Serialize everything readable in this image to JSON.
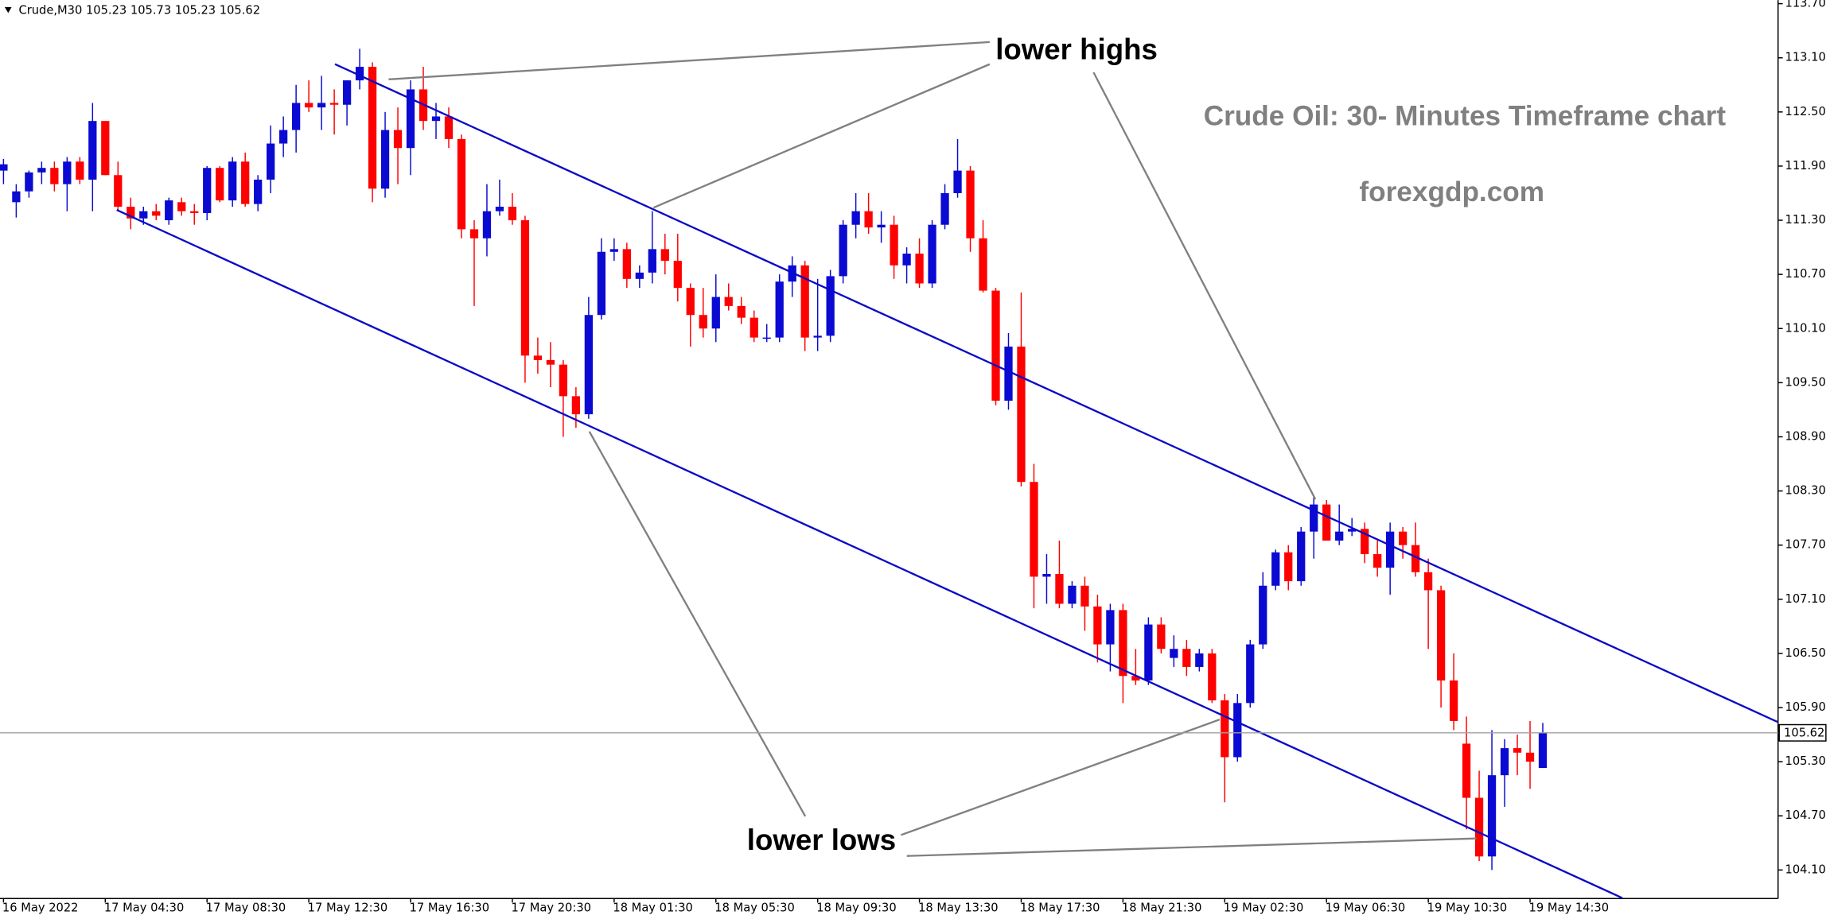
{
  "chart_data": {
    "type": "candlestick",
    "header": "Crude,M30  105.23 105.73 105.23 105.62",
    "annotations": [
      "lower highs",
      "lower lows"
    ],
    "title": "Crude Oil: 30- Minutes Timeframe chart",
    "subtitle": "forexgdp.com",
    "up_color": "#0a0ad2",
    "down_color": "#ff0000",
    "categories": [
      "16 May 2022",
      null,
      null,
      null,
      null,
      null,
      null,
      null,
      "17 May 04:30",
      null,
      null,
      null,
      null,
      null,
      null,
      null,
      "17 May 08:30",
      null,
      null,
      null,
      null,
      null,
      null,
      null,
      "17 May 12:30",
      null,
      null,
      null,
      null,
      null,
      null,
      null,
      "17 May 16:30",
      null,
      null,
      null,
      null,
      null,
      null,
      null,
      "17 May 20:30",
      null,
      null,
      null,
      null,
      null,
      null,
      null,
      "18 May 01:30",
      null,
      null,
      null,
      null,
      null,
      null,
      null,
      "18 May 05:30",
      null,
      null,
      null,
      null,
      null,
      null,
      null,
      "18 May 09:30",
      null,
      null,
      null,
      null,
      null,
      null,
      null,
      "18 May 13:30",
      null,
      null,
      null,
      null,
      null,
      null,
      null,
      "18 May 17:30",
      null,
      null,
      null,
      null,
      null,
      null,
      null,
      "18 May 21:30",
      null,
      null,
      null,
      null,
      null,
      null,
      null,
      "19 May 02:30",
      null,
      null,
      null,
      null,
      null,
      null,
      null,
      "19 May 06:30",
      null,
      null,
      null,
      null,
      null,
      null,
      null,
      "19 May 10:30",
      null,
      null,
      null,
      null,
      null,
      null,
      null,
      "19 May 14:30",
      null
    ],
    "open": [
      111.85,
      111.5,
      111.62,
      111.83,
      111.88,
      111.7,
      111.95,
      111.75,
      112.4,
      111.8,
      111.45,
      111.32,
      111.4,
      111.3,
      111.5,
      111.4,
      111.38,
      111.88,
      111.52,
      111.95,
      111.48,
      111.75,
      112.15,
      112.3,
      112.6,
      112.55,
      112.6,
      112.58,
      112.85,
      113.0,
      111.65,
      112.3,
      112.1,
      112.75,
      112.4,
      112.45,
      112.2,
      111.2,
      111.1,
      111.4,
      111.45,
      111.3,
      109.8,
      109.75,
      109.7,
      109.35,
      109.15,
      110.25,
      110.95,
      110.98,
      110.65,
      110.72,
      110.98,
      110.85,
      110.55,
      110.25,
      110.1,
      110.45,
      110.35,
      110.22,
      110.0,
      110.0,
      110.62,
      110.8,
      110.0,
      110.02,
      110.68,
      111.25,
      111.4,
      111.22,
      111.25,
      110.8,
      110.93,
      110.6,
      111.25,
      111.6,
      111.85,
      111.1,
      110.52,
      109.3,
      109.9,
      108.4,
      107.35,
      107.38,
      107.05,
      107.25,
      107.02,
      106.6,
      106.98,
      106.25,
      106.2,
      106.82,
      106.45,
      106.55,
      106.35,
      106.5,
      105.98,
      105.35,
      105.95,
      106.6,
      107.25,
      107.62,
      107.3,
      107.85,
      108.15,
      107.75,
      107.85,
      107.88,
      107.6,
      107.45,
      107.85,
      107.7,
      107.4,
      107.2,
      106.2,
      105.5,
      104.9,
      104.25,
      105.15,
      105.45,
      105.4,
      105.23
    ],
    "high": [
      111.98,
      111.7,
      111.85,
      111.95,
      111.95,
      112.0,
      112.0,
      112.6,
      112.4,
      111.95,
      111.55,
      111.45,
      111.48,
      111.55,
      111.55,
      111.48,
      111.9,
      111.9,
      112.0,
      112.05,
      111.8,
      112.35,
      112.45,
      112.8,
      112.85,
      112.9,
      112.75,
      112.85,
      113.2,
      113.05,
      112.5,
      112.55,
      112.85,
      113.0,
      112.6,
      112.55,
      112.25,
      111.3,
      111.7,
      111.75,
      111.6,
      111.35,
      110.0,
      109.95,
      109.75,
      109.45,
      110.45,
      111.1,
      111.1,
      111.05,
      110.8,
      111.4,
      111.15,
      111.15,
      110.6,
      110.55,
      110.7,
      110.6,
      110.45,
      110.3,
      110.15,
      110.7,
      110.9,
      110.85,
      110.65,
      110.75,
      111.3,
      111.6,
      111.6,
      111.4,
      111.35,
      111.0,
      111.1,
      111.3,
      111.7,
      112.2,
      111.9,
      111.3,
      110.55,
      110.05,
      110.5,
      108.6,
      107.6,
      107.75,
      107.3,
      107.35,
      107.15,
      107.05,
      107.05,
      106.55,
      106.9,
      106.9,
      106.7,
      106.65,
      106.55,
      106.55,
      106.05,
      106.05,
      106.65,
      107.4,
      107.65,
      107.7,
      107.9,
      108.25,
      108.2,
      108.15,
      108.0,
      107.95,
      107.75,
      107.95,
      107.9,
      107.95,
      107.55,
      107.25,
      106.5,
      105.8,
      105.2,
      105.65,
      105.55,
      105.6,
      105.75,
      105.73
    ],
    "low": [
      111.7,
      111.33,
      111.55,
      111.7,
      111.62,
      111.4,
      111.7,
      111.4,
      111.8,
      111.4,
      111.2,
      111.25,
      111.3,
      111.25,
      111.35,
      111.25,
      111.3,
      111.5,
      111.45,
      111.45,
      111.4,
      111.6,
      112.0,
      112.05,
      112.5,
      112.3,
      112.25,
      112.35,
      112.75,
      111.5,
      111.55,
      111.7,
      111.8,
      112.3,
      112.2,
      112.1,
      111.1,
      110.35,
      110.9,
      111.35,
      111.25,
      109.5,
      109.6,
      109.45,
      108.9,
      109.0,
      109.1,
      110.2,
      110.85,
      110.55,
      110.55,
      110.6,
      110.7,
      110.4,
      109.9,
      110.0,
      109.95,
      110.3,
      110.15,
      109.95,
      109.95,
      109.95,
      110.45,
      109.85,
      109.85,
      109.95,
      110.6,
      111.1,
      111.15,
      111.05,
      110.65,
      110.6,
      110.55,
      110.55,
      111.2,
      111.55,
      110.95,
      110.5,
      109.25,
      109.2,
      108.35,
      107.0,
      107.05,
      107.0,
      107.0,
      106.75,
      106.4,
      106.3,
      105.95,
      106.15,
      106.15,
      106.5,
      106.35,
      106.25,
      106.3,
      105.95,
      104.85,
      105.3,
      105.9,
      106.55,
      107.2,
      107.2,
      107.25,
      107.55,
      107.75,
      107.7,
      107.8,
      107.5,
      107.35,
      107.15,
      107.55,
      107.35,
      106.55,
      105.9,
      105.65,
      104.55,
      104.2,
      104.1,
      104.8,
      105.15,
      105.0,
      105.23
    ],
    "close": [
      111.92,
      111.62,
      111.83,
      111.88,
      111.7,
      111.95,
      111.75,
      112.4,
      111.8,
      111.45,
      111.32,
      111.4,
      111.35,
      111.52,
      111.4,
      111.38,
      111.88,
      111.52,
      111.95,
      111.48,
      111.75,
      112.15,
      112.3,
      112.6,
      112.55,
      112.6,
      112.58,
      112.85,
      113.0,
      111.65,
      112.3,
      112.1,
      112.75,
      112.4,
      112.45,
      112.2,
      111.2,
      111.1,
      111.4,
      111.45,
      111.3,
      109.8,
      109.75,
      109.7,
      109.35,
      109.15,
      110.25,
      110.95,
      110.98,
      110.65,
      110.72,
      110.98,
      110.85,
      110.55,
      110.25,
      110.1,
      110.45,
      110.35,
      110.22,
      110.0,
      110.0,
      110.62,
      110.8,
      110.0,
      110.02,
      110.68,
      111.25,
      111.4,
      111.22,
      111.25,
      110.8,
      110.93,
      110.6,
      111.25,
      111.6,
      111.85,
      111.1,
      110.52,
      109.3,
      109.9,
      108.4,
      107.35,
      107.38,
      107.05,
      107.25,
      107.02,
      106.6,
      106.98,
      106.25,
      106.2,
      106.82,
      106.55,
      106.55,
      106.35,
      106.5,
      105.98,
      105.35,
      105.95,
      106.6,
      107.25,
      107.62,
      107.3,
      107.85,
      108.15,
      107.75,
      107.85,
      107.88,
      107.6,
      107.45,
      107.85,
      107.7,
      107.4,
      107.2,
      106.2,
      105.75,
      104.9,
      104.25,
      105.15,
      105.45,
      105.4,
      105.3,
      105.62
    ],
    "last_price": 105.62,
    "ylim": [
      103.79,
      113.74
    ],
    "yticks": [
      {
        "value": 113.7,
        "label": "113.70"
      },
      {
        "value": 113.1,
        "label": "113.10"
      },
      {
        "value": 112.5,
        "label": "112.50"
      },
      {
        "value": 111.9,
        "label": "111.90"
      },
      {
        "value": 111.3,
        "label": "111.30"
      },
      {
        "value": 110.7,
        "label": "110.70"
      },
      {
        "value": 110.1,
        "label": "110.10"
      },
      {
        "value": 109.5,
        "label": "109.50"
      },
      {
        "value": 108.9,
        "label": "108.90"
      },
      {
        "value": 108.3,
        "label": "108.30"
      },
      {
        "value": 107.7,
        "label": "107.70"
      },
      {
        "value": 107.1,
        "label": "107.10"
      },
      {
        "value": 106.5,
        "label": "106.50"
      },
      {
        "value": 105.9,
        "label": "105.90"
      },
      {
        "value": 105.3,
        "label": "105.30"
      },
      {
        "value": 104.7,
        "label": "104.70"
      },
      {
        "value": 104.1,
        "label": "104.10"
      }
    ],
    "grid": false
  }
}
